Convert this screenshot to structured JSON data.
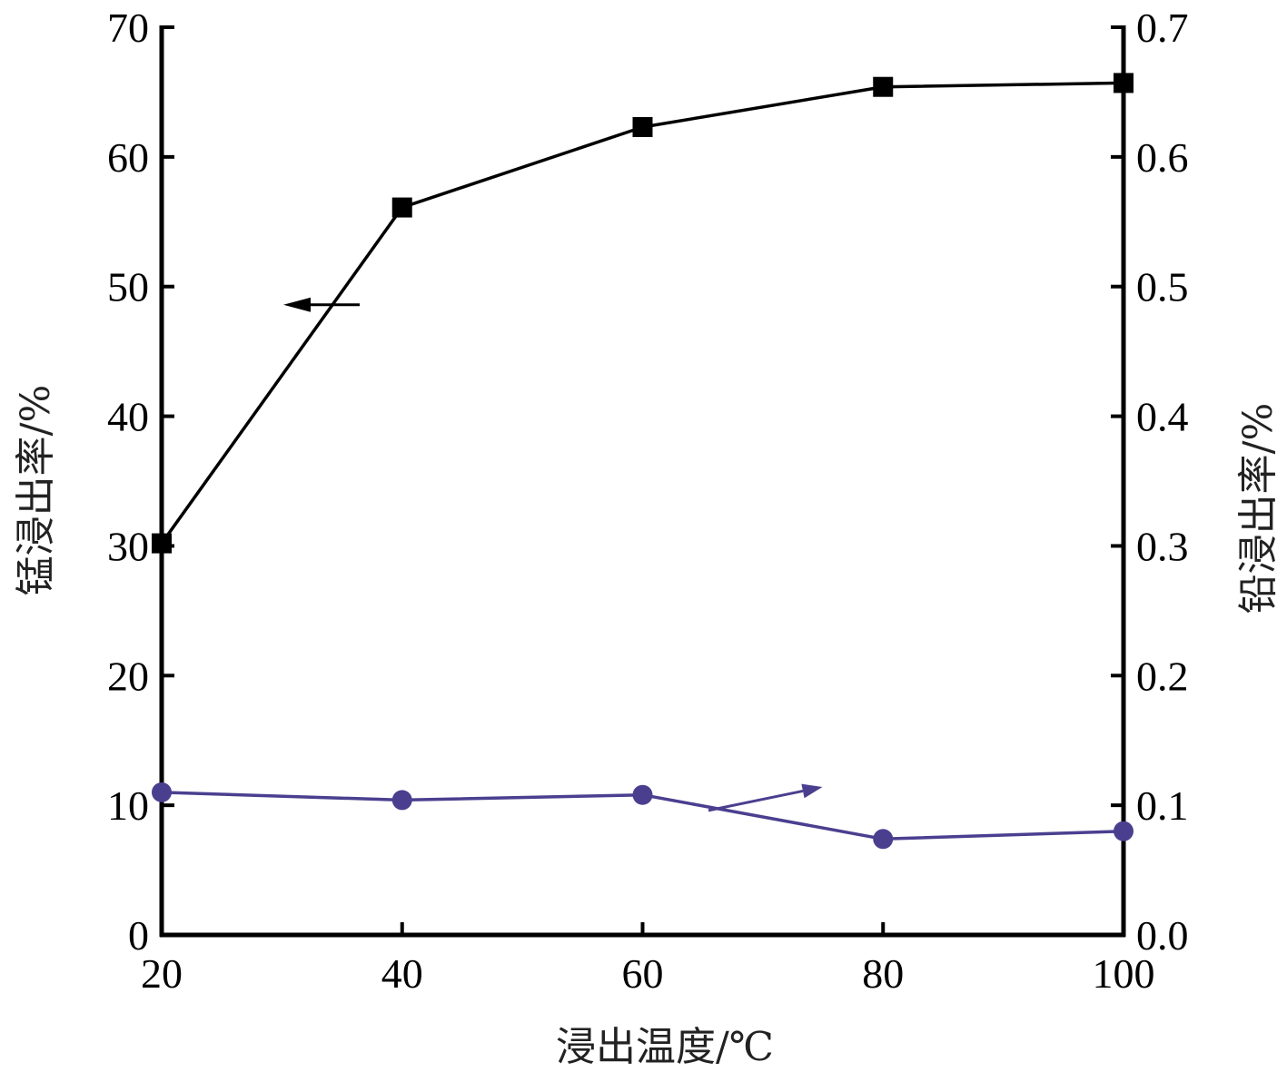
{
  "chart_data": {
    "type": "line",
    "x": [
      20,
      40,
      60,
      80,
      100
    ],
    "x_ticks": [
      "20",
      "40",
      "60",
      "80",
      "100"
    ],
    "xlim": [
      20,
      100
    ],
    "xlabel": "浸出温度/℃",
    "ylabel_left": "锰浸出率/%",
    "ylabel_right": "铅浸出率/%",
    "ylim_left": [
      0,
      70
    ],
    "ylim_right": [
      0.0,
      0.7
    ],
    "y_ticks_left": [
      "0",
      "10",
      "20",
      "30",
      "40",
      "50",
      "60",
      "70"
    ],
    "y_ticks_right": [
      "0.0",
      "0.1",
      "0.2",
      "0.3",
      "0.4",
      "0.5",
      "0.6",
      "0.7"
    ],
    "grid": false,
    "series": [
      {
        "axis": "left",
        "marker": "square",
        "color": "#000000",
        "values": [
          30.2,
          56.1,
          62.3,
          65.4,
          65.7
        ],
        "indicator": "arrow-left"
      },
      {
        "axis": "right",
        "marker": "circle",
        "color": "#4a3f8f",
        "values": [
          0.11,
          0.104,
          0.108,
          0.074,
          0.08
        ],
        "indicator": "arrow-right"
      }
    ]
  }
}
